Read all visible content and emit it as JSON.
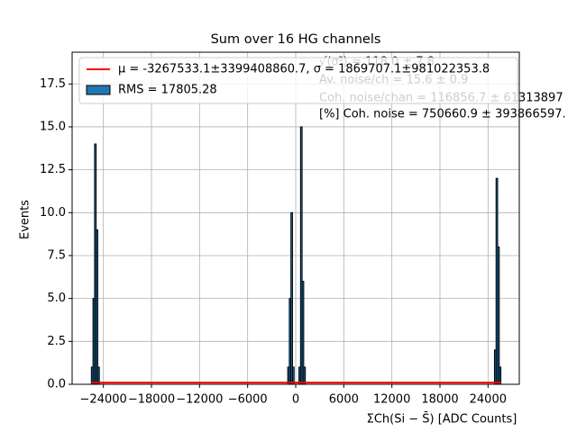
{
  "chart_data": {
    "type": "histogram",
    "title": "Sum over 16 HG channels",
    "xlabel": "ΣCh(Si − S̄) [ADC Counts]",
    "ylabel": "Events",
    "bins": [
      -25500,
      -25300,
      -25100,
      -24900,
      -24700,
      -24500,
      -1000,
      -800,
      -600,
      -400,
      -200,
      0,
      200,
      400,
      600,
      800,
      1000,
      1200,
      24800,
      25000,
      25200,
      25400,
      25600
    ],
    "series": [
      {
        "name": "RMS = 17805.28",
        "color": "#1f77b4",
        "values": [
          1,
          5,
          14,
          9,
          1,
          0,
          1,
          5,
          10,
          1,
          0,
          0,
          0,
          1,
          15,
          6,
          1,
          0,
          2,
          12,
          8,
          1
        ]
      }
    ],
    "fit": {
      "name": "μ = -3267533.1±3399408860.7, σ = 1869707.1±981022353.8",
      "color": "#ff0000",
      "x": [
        -25500,
        25600
      ],
      "values": [
        0.1,
        0.1
      ]
    },
    "annotations": [
      "√⟨σ²⟩ = 118.0 ± 7.8",
      "Av. noise/ch = 15.6 ± 0.9",
      "Coh. noise/chan = 116856.7 ± 61313897",
      "[%] Coh. noise = 750660.9 ± 393866597."
    ],
    "xlim": [
      -27900,
      27900
    ],
    "xticks": [
      {
        "value": -24000,
        "label": "−24000"
      },
      {
        "value": -18000,
        "label": "−18000"
      },
      {
        "value": -12000,
        "label": "−12000"
      },
      {
        "value": -6000,
        "label": "−6000"
      },
      0,
      6000,
      12000,
      18000,
      24000
    ],
    "ylim": [
      0,
      19.35
    ],
    "yticks": [
      {
        "value": 0,
        "label": "0.0"
      },
      2.5,
      {
        "value": 5,
        "label": "5.0"
      },
      7.5,
      {
        "value": 10,
        "label": "10.0"
      },
      12.5,
      {
        "value": 15,
        "label": "15.0"
      },
      17.5
    ],
    "grid": true
  }
}
